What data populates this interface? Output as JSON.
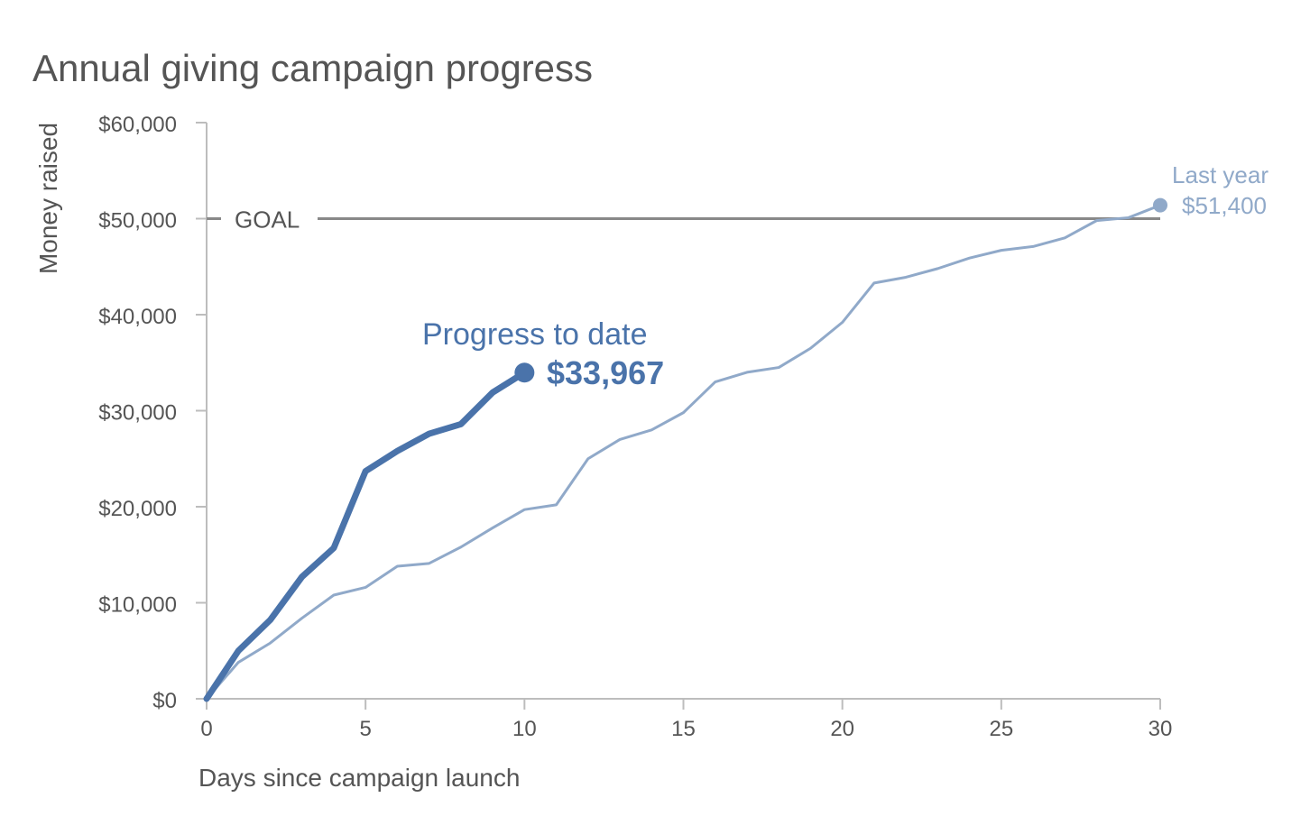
{
  "chart_data": {
    "type": "line",
    "title": "Annual giving campaign progress",
    "xlabel": "Days since campaign launch",
    "ylabel": "Money raised",
    "xlim": [
      0,
      30
    ],
    "ylim": [
      0,
      60000
    ],
    "x_ticks": [
      0,
      5,
      10,
      15,
      20,
      25,
      30
    ],
    "y_ticks": [
      0,
      10000,
      20000,
      30000,
      40000,
      50000,
      60000
    ],
    "y_tick_labels": [
      "$0",
      "$10,000",
      "$20,000",
      "$30,000",
      "$40,000",
      "$50,000",
      "$60,000"
    ],
    "grid": false,
    "legend": "none",
    "goal": {
      "value": 50000,
      "label": "GOAL"
    },
    "series": [
      {
        "key": "last_year",
        "color": "#90a9c9",
        "x": [
          0,
          1,
          2,
          3,
          4,
          5,
          6,
          7,
          8,
          9,
          10,
          11,
          12,
          13,
          14,
          15,
          16,
          17,
          18,
          19,
          20,
          21,
          22,
          23,
          24,
          25,
          26,
          27,
          28,
          29,
          30
        ],
        "values": [
          0,
          3800,
          5800,
          8400,
          10800,
          11600,
          13800,
          14100,
          15800,
          17800,
          19700,
          20200,
          25000,
          27000,
          28000,
          29800,
          33000,
          34000,
          34500,
          36500,
          39200,
          43300,
          43900,
          44800,
          45900,
          46700,
          47100,
          48000,
          49800,
          50100,
          51400
        ],
        "end_label_top": "Last year",
        "end_label_value": "$51,400"
      },
      {
        "key": "this_year",
        "color": "#4a73aa",
        "x": [
          0,
          1,
          2,
          3,
          4,
          5,
          6,
          7,
          8,
          9,
          10
        ],
        "values": [
          0,
          5000,
          8200,
          12700,
          15700,
          23700,
          25800,
          27600,
          28600,
          31900,
          33967
        ],
        "end_label_top": "Progress to date",
        "end_label_value": "$33,967"
      }
    ]
  }
}
